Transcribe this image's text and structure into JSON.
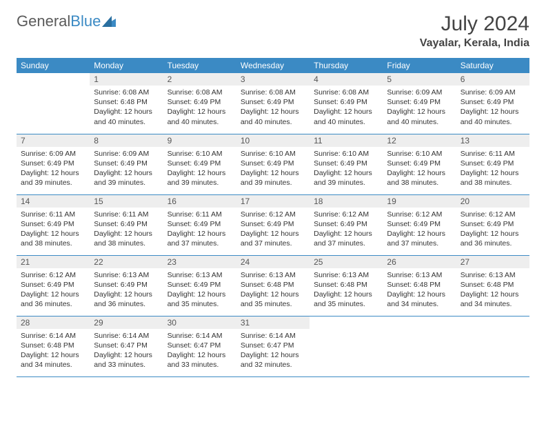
{
  "brand": {
    "part1": "General",
    "part2": "Blue"
  },
  "title": "July 2024",
  "location": "Vayalar, Kerala, India",
  "colors": {
    "header_bg": "#3b8ac4",
    "header_text": "#ffffff",
    "daynum_bg": "#eeeeee",
    "border": "#3b8ac4",
    "text": "#333333",
    "logo_gray": "#5a5a5a",
    "logo_blue": "#3b8ac4"
  },
  "weekdays": [
    "Sunday",
    "Monday",
    "Tuesday",
    "Wednesday",
    "Thursday",
    "Friday",
    "Saturday"
  ],
  "weeks": [
    [
      null,
      {
        "n": "1",
        "sr": "6:08 AM",
        "ss": "6:48 PM",
        "dl": "12 hours and 40 minutes."
      },
      {
        "n": "2",
        "sr": "6:08 AM",
        "ss": "6:49 PM",
        "dl": "12 hours and 40 minutes."
      },
      {
        "n": "3",
        "sr": "6:08 AM",
        "ss": "6:49 PM",
        "dl": "12 hours and 40 minutes."
      },
      {
        "n": "4",
        "sr": "6:08 AM",
        "ss": "6:49 PM",
        "dl": "12 hours and 40 minutes."
      },
      {
        "n": "5",
        "sr": "6:09 AM",
        "ss": "6:49 PM",
        "dl": "12 hours and 40 minutes."
      },
      {
        "n": "6",
        "sr": "6:09 AM",
        "ss": "6:49 PM",
        "dl": "12 hours and 40 minutes."
      }
    ],
    [
      {
        "n": "7",
        "sr": "6:09 AM",
        "ss": "6:49 PM",
        "dl": "12 hours and 39 minutes."
      },
      {
        "n": "8",
        "sr": "6:09 AM",
        "ss": "6:49 PM",
        "dl": "12 hours and 39 minutes."
      },
      {
        "n": "9",
        "sr": "6:10 AM",
        "ss": "6:49 PM",
        "dl": "12 hours and 39 minutes."
      },
      {
        "n": "10",
        "sr": "6:10 AM",
        "ss": "6:49 PM",
        "dl": "12 hours and 39 minutes."
      },
      {
        "n": "11",
        "sr": "6:10 AM",
        "ss": "6:49 PM",
        "dl": "12 hours and 39 minutes."
      },
      {
        "n": "12",
        "sr": "6:10 AM",
        "ss": "6:49 PM",
        "dl": "12 hours and 38 minutes."
      },
      {
        "n": "13",
        "sr": "6:11 AM",
        "ss": "6:49 PM",
        "dl": "12 hours and 38 minutes."
      }
    ],
    [
      {
        "n": "14",
        "sr": "6:11 AM",
        "ss": "6:49 PM",
        "dl": "12 hours and 38 minutes."
      },
      {
        "n": "15",
        "sr": "6:11 AM",
        "ss": "6:49 PM",
        "dl": "12 hours and 38 minutes."
      },
      {
        "n": "16",
        "sr": "6:11 AM",
        "ss": "6:49 PM",
        "dl": "12 hours and 37 minutes."
      },
      {
        "n": "17",
        "sr": "6:12 AM",
        "ss": "6:49 PM",
        "dl": "12 hours and 37 minutes."
      },
      {
        "n": "18",
        "sr": "6:12 AM",
        "ss": "6:49 PM",
        "dl": "12 hours and 37 minutes."
      },
      {
        "n": "19",
        "sr": "6:12 AM",
        "ss": "6:49 PM",
        "dl": "12 hours and 37 minutes."
      },
      {
        "n": "20",
        "sr": "6:12 AM",
        "ss": "6:49 PM",
        "dl": "12 hours and 36 minutes."
      }
    ],
    [
      {
        "n": "21",
        "sr": "6:12 AM",
        "ss": "6:49 PM",
        "dl": "12 hours and 36 minutes."
      },
      {
        "n": "22",
        "sr": "6:13 AM",
        "ss": "6:49 PM",
        "dl": "12 hours and 36 minutes."
      },
      {
        "n": "23",
        "sr": "6:13 AM",
        "ss": "6:49 PM",
        "dl": "12 hours and 35 minutes."
      },
      {
        "n": "24",
        "sr": "6:13 AM",
        "ss": "6:48 PM",
        "dl": "12 hours and 35 minutes."
      },
      {
        "n": "25",
        "sr": "6:13 AM",
        "ss": "6:48 PM",
        "dl": "12 hours and 35 minutes."
      },
      {
        "n": "26",
        "sr": "6:13 AM",
        "ss": "6:48 PM",
        "dl": "12 hours and 34 minutes."
      },
      {
        "n": "27",
        "sr": "6:13 AM",
        "ss": "6:48 PM",
        "dl": "12 hours and 34 minutes."
      }
    ],
    [
      {
        "n": "28",
        "sr": "6:14 AM",
        "ss": "6:48 PM",
        "dl": "12 hours and 34 minutes."
      },
      {
        "n": "29",
        "sr": "6:14 AM",
        "ss": "6:47 PM",
        "dl": "12 hours and 33 minutes."
      },
      {
        "n": "30",
        "sr": "6:14 AM",
        "ss": "6:47 PM",
        "dl": "12 hours and 33 minutes."
      },
      {
        "n": "31",
        "sr": "6:14 AM",
        "ss": "6:47 PM",
        "dl": "12 hours and 32 minutes."
      },
      null,
      null,
      null
    ]
  ],
  "labels": {
    "sunrise": "Sunrise: ",
    "sunset": "Sunset: ",
    "daylight": "Daylight: "
  }
}
